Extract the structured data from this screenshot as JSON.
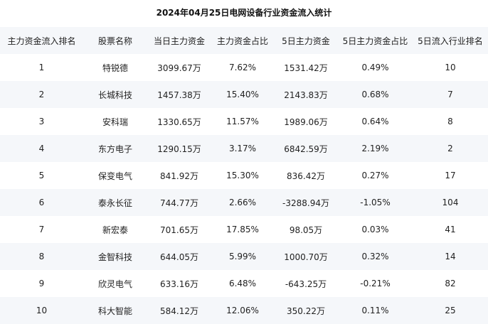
{
  "title": "2024年04月25日电网设备行业资金流入统计",
  "headers": [
    "主力资金流入排名",
    "股票名称",
    "当日主力资金",
    "主力资金占比",
    "5日主力资金",
    "5日主力资金占比",
    "5日流入行业排名"
  ],
  "rows": [
    [
      "1",
      "特锐德",
      "3099.67万",
      "7.62%",
      "1531.42万",
      "0.49%",
      "10"
    ],
    [
      "2",
      "长城科技",
      "1457.38万",
      "15.40%",
      "2143.83万",
      "0.68%",
      "7"
    ],
    [
      "3",
      "安科瑞",
      "1330.65万",
      "11.57%",
      "1989.06万",
      "0.64%",
      "8"
    ],
    [
      "4",
      "东方电子",
      "1290.15万",
      "3.17%",
      "6842.59万",
      "2.19%",
      "2"
    ],
    [
      "5",
      "保变电气",
      "841.92万",
      "15.30%",
      "836.42万",
      "0.27%",
      "17"
    ],
    [
      "6",
      "泰永长征",
      "744.77万",
      "2.66%",
      "-3288.94万",
      "-1.05%",
      "104"
    ],
    [
      "7",
      "新宏泰",
      "701.65万",
      "17.85%",
      "98.05万",
      "0.03%",
      "41"
    ],
    [
      "8",
      "金智科技",
      "644.05万",
      "5.99%",
      "1000.70万",
      "0.32%",
      "14"
    ],
    [
      "9",
      "欣灵电气",
      "633.16万",
      "6.48%",
      "-643.25万",
      "-0.21%",
      "82"
    ],
    [
      "10",
      "科大智能",
      "584.12万",
      "12.06%",
      "350.22万",
      "0.11%",
      "25"
    ]
  ]
}
